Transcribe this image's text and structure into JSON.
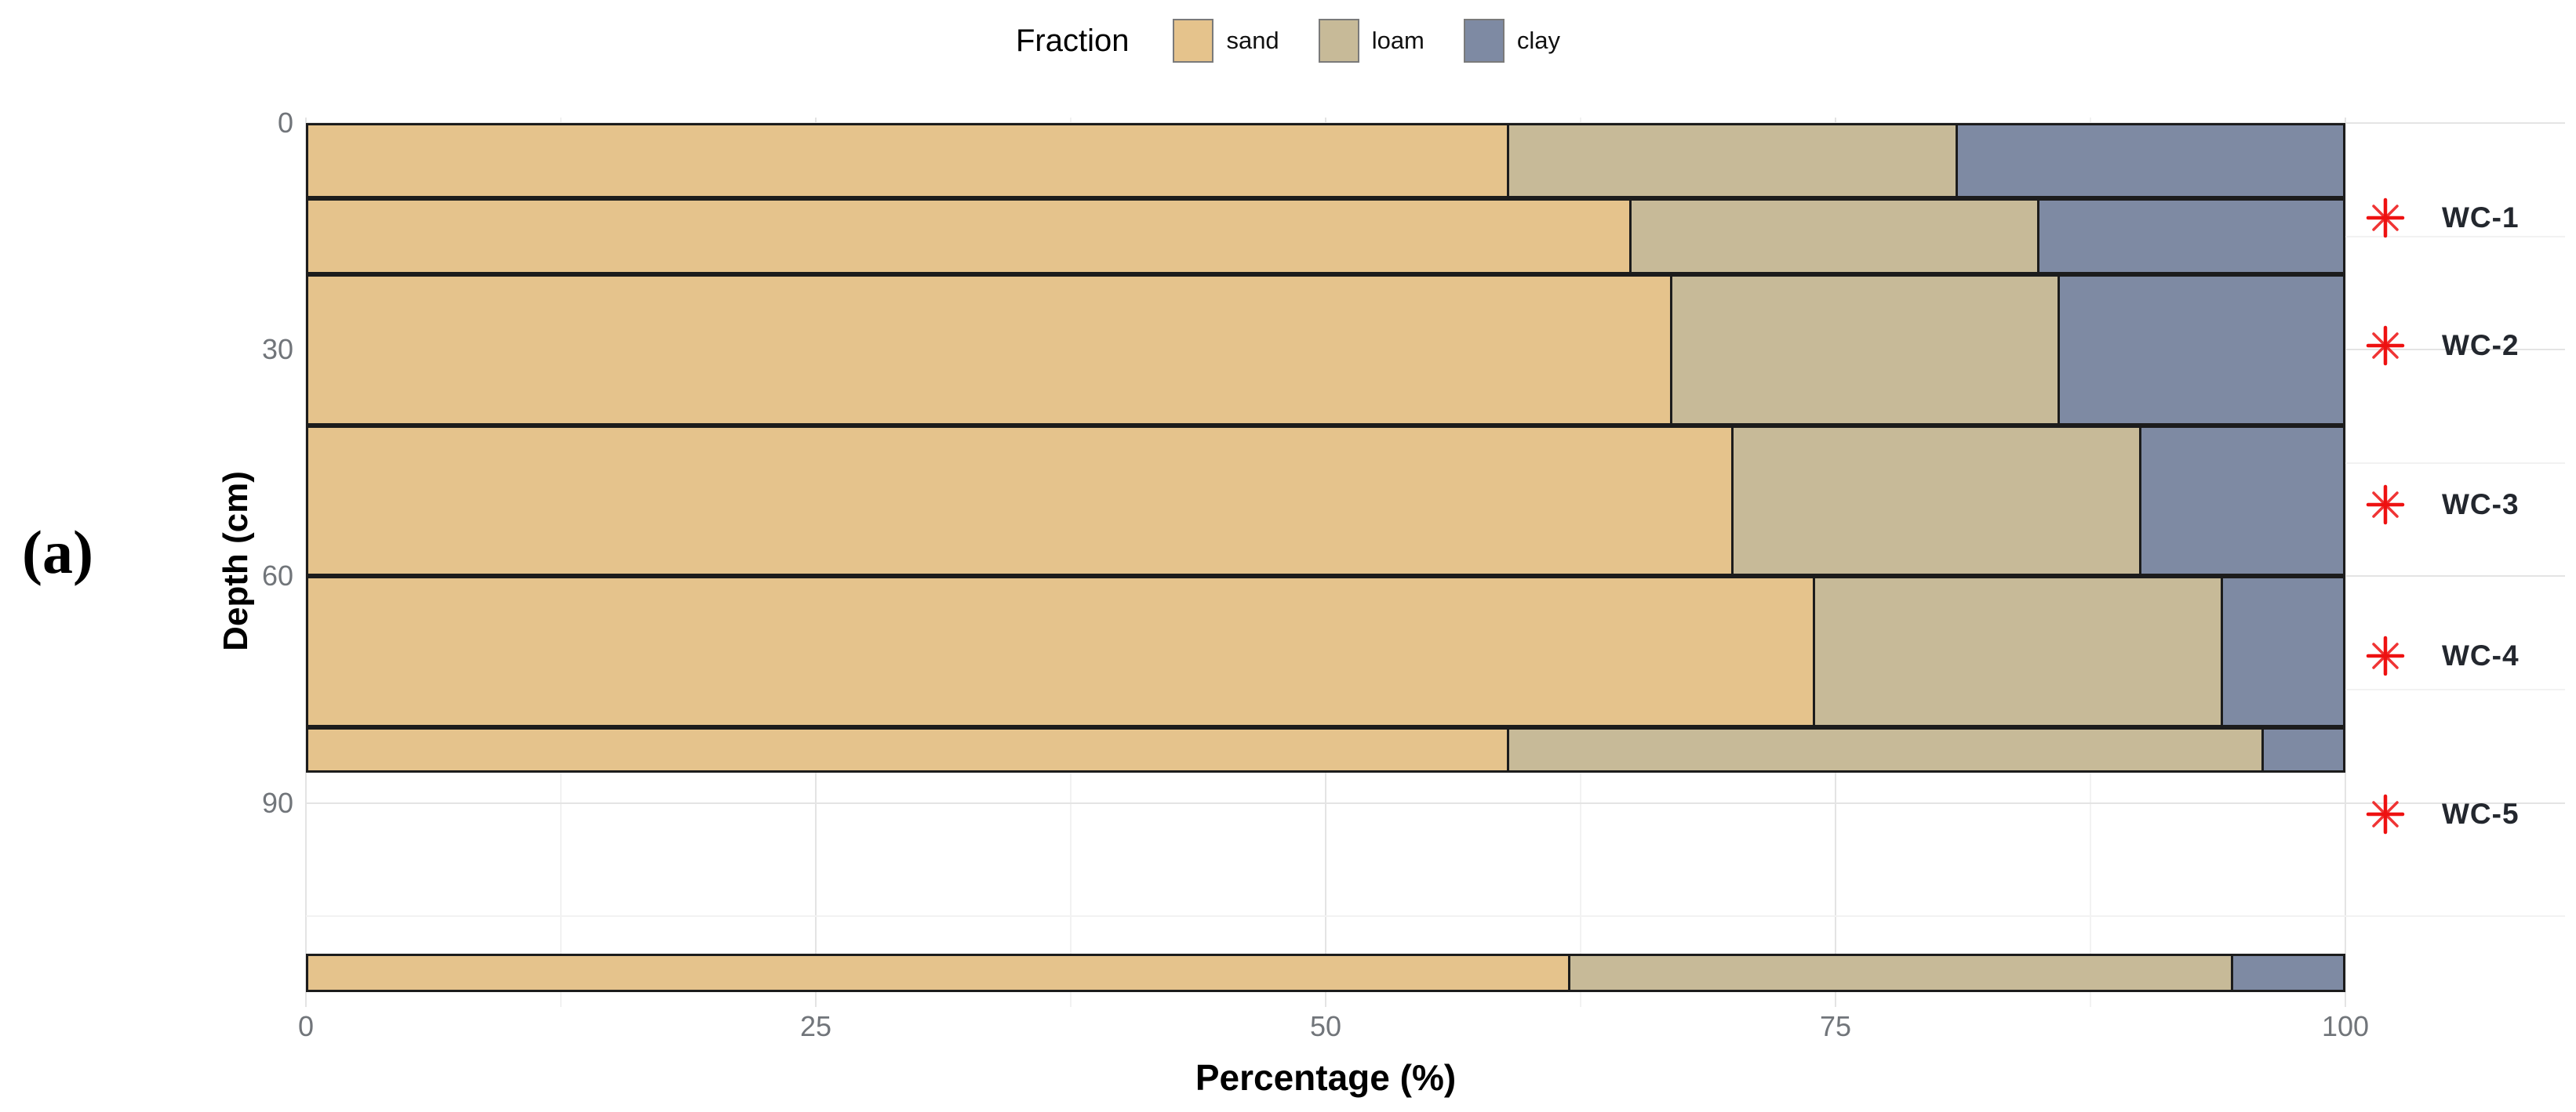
{
  "figure_label": "(a)",
  "legend": {
    "title": "Fraction",
    "items": [
      {
        "key": "sand",
        "label": "sand",
        "color": "#e5c38c"
      },
      {
        "key": "loam",
        "label": "loam",
        "color": "#c7ba98"
      },
      {
        "key": "clay",
        "label": "clay",
        "color": "#7e8aa3"
      }
    ]
  },
  "axes": {
    "x": {
      "title": "Percentage (%)",
      "ticks": [
        0,
        25,
        50,
        75,
        100
      ],
      "minor_gridlines": [
        12.5,
        37.5,
        62.5,
        87.5
      ],
      "range": [
        0,
        100
      ]
    },
    "y": {
      "title": "Depth (cm)",
      "ticks": [
        0,
        30,
        60,
        90
      ],
      "minor_gridlines": [
        15,
        45,
        75,
        105
      ],
      "range": [
        0,
        117
      ]
    }
  },
  "chart_data": {
    "type": "bar",
    "orientation": "horizontal",
    "stacked": true,
    "xlabel": "Percentage (%)",
    "ylabel": "Depth (cm)",
    "xlim": [
      0,
      100
    ],
    "series_order": [
      "sand",
      "loam",
      "clay"
    ],
    "rows": [
      {
        "depth_from_cm": 0,
        "depth_to_cm": 10,
        "sand": 59,
        "loam": 22,
        "clay": 19
      },
      {
        "depth_from_cm": 10,
        "depth_to_cm": 20,
        "sand": 65,
        "loam": 20,
        "clay": 15
      },
      {
        "depth_from_cm": 20,
        "depth_to_cm": 40,
        "sand": 67,
        "loam": 19,
        "clay": 14
      },
      {
        "depth_from_cm": 40,
        "depth_to_cm": 60,
        "sand": 70,
        "loam": 20,
        "clay": 10
      },
      {
        "depth_from_cm": 60,
        "depth_to_cm": 80,
        "sand": 74,
        "loam": 20,
        "clay": 6
      },
      {
        "depth_from_cm": 80,
        "depth_to_cm": 86,
        "sand": 59,
        "loam": 37,
        "clay": 4
      },
      {
        "depth_from_cm": 110,
        "depth_to_cm": 115,
        "sand": 62,
        "loam": 32.5,
        "clay": 5.5
      }
    ],
    "legend_position": "top",
    "grid": true
  },
  "annotations": {
    "marker": "red-asterisk",
    "marker_color": "#ee1111",
    "sites": [
      {
        "label": "WC-1",
        "depth_cm": 12.5
      },
      {
        "label": "WC-2",
        "depth_cm": 29.5
      },
      {
        "label": "WC-3",
        "depth_cm": 50.5
      },
      {
        "label": "WC-4",
        "depth_cm": 70.5
      },
      {
        "label": "WC-5",
        "depth_cm": 91.5
      }
    ]
  }
}
